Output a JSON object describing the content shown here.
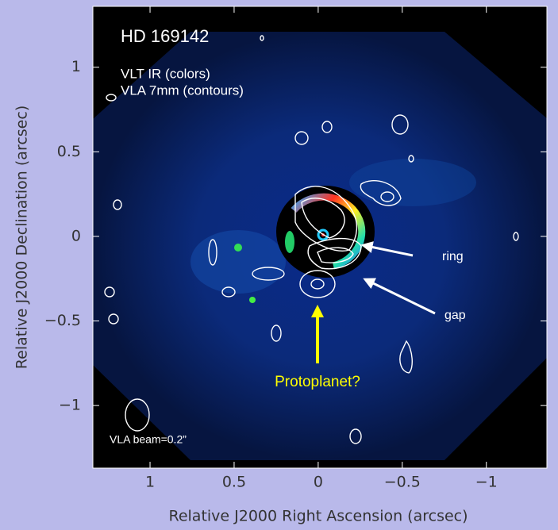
{
  "chart_data": {
    "type": "image",
    "xlabel": "Relative J2000 Right Ascension (arcsec)",
    "ylabel": "Relative J2000 Declination (arcsec)",
    "xlim": [
      1.34,
      -1.36
    ],
    "ylim": [
      -1.37,
      1.36
    ],
    "xticks": [
      1,
      0.5,
      0,
      {
        "value": -0.5,
        "label": "−0.5"
      },
      {
        "value": -1,
        "label": "−1"
      }
    ],
    "yticks": [
      {
        "value": -1,
        "label": "−1"
      },
      {
        "value": -0.5,
        "label": "−0.5"
      },
      0,
      0.5,
      1
    ],
    "annotations": [
      "HD 169142",
      "VLT IR (colors)",
      "VLA 7mm (contours)",
      "ring",
      "gap",
      "Protoplanet?",
      "VLA beam=0.2”"
    ]
  }
}
